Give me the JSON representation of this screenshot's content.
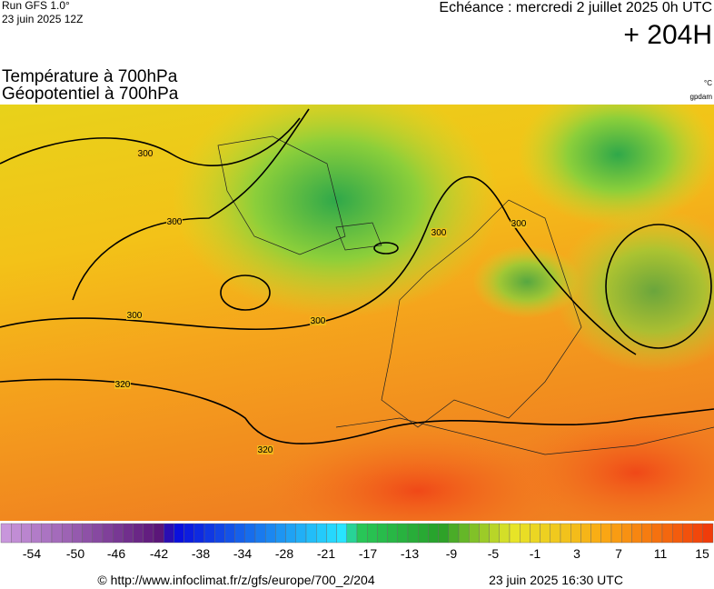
{
  "header": {
    "run": "Run GFS 1.0°",
    "run_date": "23 juin 2025 12Z",
    "echeance": "Echéance : mercredi 2 juillet 2025 0h UTC",
    "lead": "+ 204H",
    "title_1": "Température à 700hPa",
    "title_2": "Géopotentiel à 700hPa",
    "unit_1": "°C",
    "unit_2": "gpdam"
  },
  "map": {
    "contour_labels": [
      "300",
      "300",
      "300",
      "300",
      "300",
      "300",
      "320",
      "320"
    ]
  },
  "colorbar": {
    "labels": [
      "-54",
      "-50",
      "-46",
      "-42",
      "-38",
      "-34",
      "-28",
      "-21",
      "-17",
      "-13",
      "-9",
      "-5",
      "-1",
      "3",
      "7",
      "11",
      "15"
    ]
  },
  "footer": {
    "source": "© http://www.infoclimat.fr/z/gfs/europe/700_2/204",
    "generated": "23 juin 2025 16:30 UTC"
  }
}
